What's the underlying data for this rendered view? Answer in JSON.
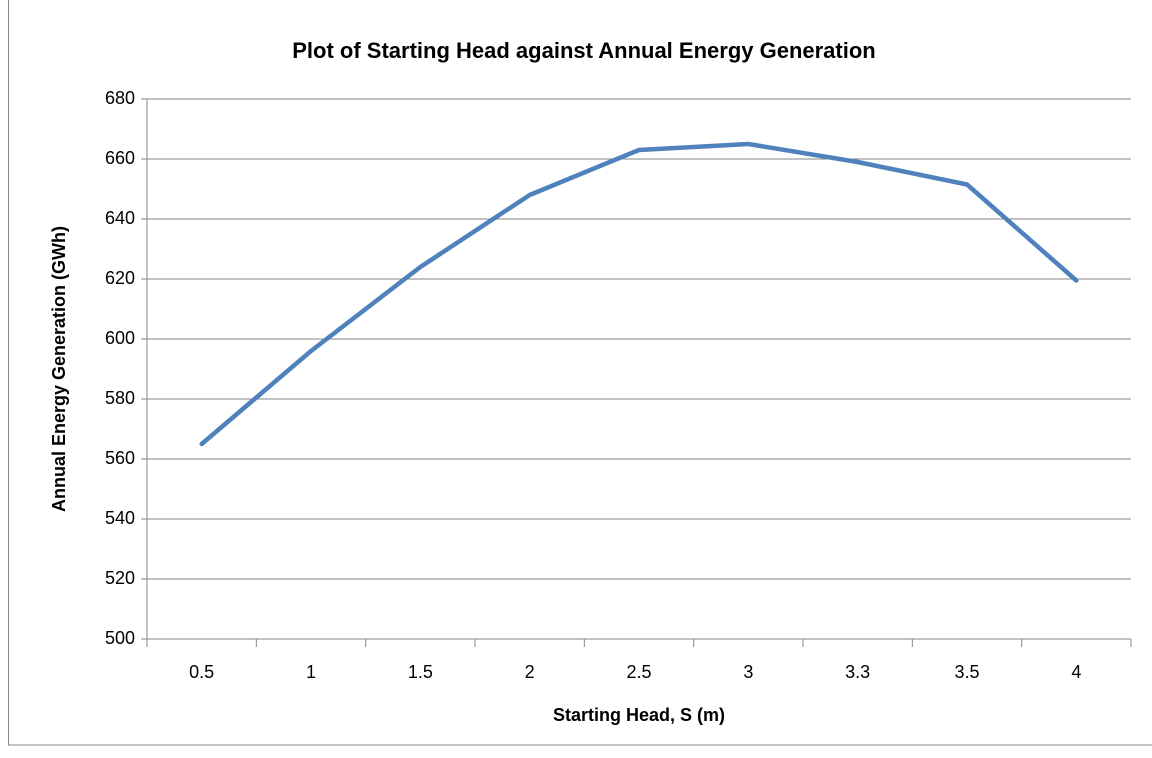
{
  "chart_data": {
    "type": "line",
    "title": "Plot of Starting Head against Annual Energy Generation",
    "x_label": "Starting Head, S (m)",
    "y_label": "Annual Energy Generation (GWh)",
    "categories": [
      "0.5",
      "1",
      "1.5",
      "2",
      "2.5",
      "3",
      "3.3",
      "3.5",
      "4"
    ],
    "series": [
      {
        "name": "Annual Energy Generation",
        "color": "#4f81bd",
        "values": [
          565,
          596,
          624,
          648,
          663,
          665,
          659,
          651.5,
          619.5
        ]
      }
    ],
    "ylim": [
      500,
      680
    ],
    "yticks": [
      500,
      520,
      540,
      560,
      580,
      600,
      620,
      640,
      660,
      680
    ],
    "grid": true,
    "legend": false
  }
}
